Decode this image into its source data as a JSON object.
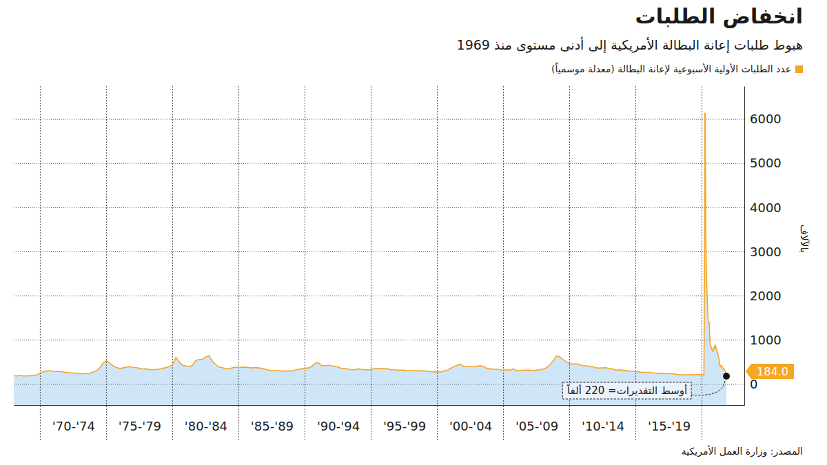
{
  "chart_data": {
    "type": "area",
    "title": "انخفاض الطلبات",
    "subtitle": "هبوط طلبات إعانة البطالة الأمريكية إلى أدنى مستوى منذ 1969",
    "y_label": "بالآلاف",
    "source": "المصدر: وزارة العمل الأمريكية",
    "x": [
      1968,
      1968.25,
      1968.5,
      1968.75,
      1969,
      1969.25,
      1969.5,
      1969.75,
      1970,
      1970.25,
      1970.5,
      1970.75,
      1971,
      1971.25,
      1971.5,
      1971.75,
      1972,
      1972.25,
      1972.5,
      1972.75,
      1973,
      1973.25,
      1973.5,
      1973.75,
      1974,
      1974.25,
      1974.5,
      1974.75,
      1975,
      1975.25,
      1975.5,
      1975.75,
      1976,
      1976.25,
      1976.5,
      1976.75,
      1977,
      1977.25,
      1977.5,
      1977.75,
      1978,
      1978.25,
      1978.5,
      1978.75,
      1979,
      1979.25,
      1979.5,
      1979.75,
      1980,
      1980.25,
      1980.5,
      1980.75,
      1981,
      1981.25,
      1981.5,
      1981.75,
      1982,
      1982.25,
      1982.5,
      1982.75,
      1983,
      1983.25,
      1983.5,
      1983.75,
      1984,
      1984.25,
      1984.5,
      1984.75,
      1985,
      1985.25,
      1985.5,
      1985.75,
      1986,
      1986.25,
      1986.5,
      1986.75,
      1987,
      1987.25,
      1987.5,
      1987.75,
      1988,
      1988.25,
      1988.5,
      1988.75,
      1989,
      1989.25,
      1989.5,
      1989.75,
      1990,
      1990.25,
      1990.5,
      1990.75,
      1991,
      1991.25,
      1991.5,
      1991.75,
      1992,
      1992.25,
      1992.5,
      1992.75,
      1993,
      1993.25,
      1993.5,
      1993.75,
      1994,
      1994.25,
      1994.5,
      1994.75,
      1995,
      1995.25,
      1995.5,
      1995.75,
      1996,
      1996.25,
      1996.5,
      1996.75,
      1997,
      1997.25,
      1997.5,
      1997.75,
      1998,
      1998.25,
      1998.5,
      1998.75,
      1999,
      1999.25,
      1999.5,
      1999.75,
      2000,
      2000.25,
      2000.5,
      2000.75,
      2001,
      2001.25,
      2001.5,
      2001.75,
      2002,
      2002.25,
      2002.5,
      2002.75,
      2003,
      2003.25,
      2003.5,
      2003.75,
      2004,
      2004.25,
      2004.5,
      2004.75,
      2005,
      2005.25,
      2005.5,
      2005.75,
      2006,
      2006.25,
      2006.5,
      2006.75,
      2007,
      2007.25,
      2007.5,
      2007.75,
      2008,
      2008.25,
      2008.5,
      2008.75,
      2009,
      2009.25,
      2009.5,
      2009.75,
      2010,
      2010.25,
      2010.5,
      2010.75,
      2011,
      2011.25,
      2011.5,
      2011.75,
      2012,
      2012.25,
      2012.5,
      2012.75,
      2013,
      2013.25,
      2013.5,
      2013.75,
      2014,
      2014.25,
      2014.5,
      2014.75,
      2015,
      2015.25,
      2015.5,
      2015.75,
      2016,
      2016.25,
      2016.5,
      2016.75,
      2017,
      2017.25,
      2017.5,
      2017.75,
      2018,
      2018.25,
      2018.5,
      2018.75,
      2019,
      2019.25,
      2019.5,
      2019.75,
      2020,
      2020.15,
      2020.2,
      2020.22,
      2020.24,
      2020.26,
      2020.28,
      2020.3,
      2020.35,
      2020.4,
      2020.45,
      2020.5,
      2020.55,
      2020.6,
      2020.65,
      2020.7,
      2020.75,
      2020.8,
      2020.85,
      2020.9,
      2020.95,
      2021,
      2021.05,
      2021.1,
      2021.15,
      2021.2,
      2021.25,
      2021.3,
      2021.35,
      2021.4,
      2021.45,
      2021.5,
      2021.55,
      2021.6,
      2021.65,
      2021.7,
      2021.75,
      2021.8,
      2021.85
    ],
    "series": [
      {
        "name": "عدد الطلبات الأولية الأسبوعية لإعانة البطالة (معدلة موسمياً)",
        "color": "#f5a623",
        "values": [
          195,
          190,
          200,
          190,
          190,
          195,
          200,
          215,
          260,
          290,
          300,
          310,
          290,
          295,
          290,
          280,
          265,
          260,
          255,
          250,
          235,
          240,
          245,
          250,
          280,
          300,
          380,
          480,
          540,
          480,
          420,
          380,
          360,
          370,
          390,
          400,
          380,
          375,
          365,
          345,
          350,
          335,
          330,
          335,
          345,
          360,
          380,
          400,
          440,
          610,
          510,
          430,
          420,
          400,
          430,
          540,
          560,
          570,
          620,
          650,
          520,
          450,
          390,
          380,
          350,
          350,
          370,
          390,
          380,
          390,
          385,
          380,
          370,
          380,
          370,
          360,
          340,
          320,
          310,
          310,
          310,
          300,
          300,
          305,
          300,
          320,
          340,
          350,
          360,
          370,
          400,
          470,
          490,
          430,
          420,
          430,
          420,
          410,
          390,
          360,
          360,
          350,
          330,
          330,
          350,
          340,
          330,
          330,
          330,
          360,
          360,
          355,
          350,
          350,
          330,
          330,
          320,
          320,
          320,
          310,
          310,
          310,
          310,
          310,
          300,
          300,
          290,
          280,
          280,
          280,
          300,
          320,
          360,
          400,
          430,
          460,
          400,
          410,
          400,
          400,
          410,
          420,
          400,
          360,
          350,
          340,
          340,
          330,
          320,
          330,
          320,
          350,
          310,
          310,
          320,
          320,
          320,
          310,
          320,
          330,
          350,
          370,
          440,
          530,
          640,
          620,
          560,
          510,
          470,
          460,
          460,
          450,
          420,
          420,
          410,
          400,
          370,
          370,
          370,
          380,
          350,
          350,
          320,
          330,
          320,
          310,
          300,
          290,
          290,
          280,
          270,
          270,
          270,
          260,
          255,
          250,
          245,
          240,
          240,
          240,
          230,
          220,
          215,
          215,
          215,
          220,
          215,
          220,
          215,
          210,
          2920,
          6150,
          6100,
          5000,
          4300,
          3100,
          2400,
          1900,
          1500,
          1400,
          1400,
          1000,
          870,
          850,
          790,
          750,
          750,
          850,
          800,
          900,
          850,
          780,
          750,
          700,
          620,
          550,
          450,
          400,
          410,
          420,
          380,
          350,
          350,
          330,
          290,
          270,
          184
        ]
      }
    ],
    "xlim": [
      1968,
      2023.2
    ],
    "xticks": [
      {
        "value": 1972.5,
        "label": "'70-'74"
      },
      {
        "value": 1977.5,
        "label": "'75-'79"
      },
      {
        "value": 1982.5,
        "label": "'80-'84"
      },
      {
        "value": 1987.5,
        "label": "'85-'89"
      },
      {
        "value": 1992.5,
        "label": "'90-'94"
      },
      {
        "value": 1997.5,
        "label": "'95-'99"
      },
      {
        "value": 2002.5,
        "label": "'00-'04"
      },
      {
        "value": 2007.5,
        "label": "'05-'09"
      },
      {
        "value": 2012.5,
        "label": "'10-'14"
      },
      {
        "value": 2017.5,
        "label": "'15-'19"
      }
    ],
    "ylim": [
      -470,
      6750
    ],
    "yticks": [
      0,
      1000,
      2000,
      3000,
      4000,
      5000,
      6000
    ],
    "grid": true,
    "annotations": [
      {
        "x": 2021.85,
        "y": 184,
        "text": "184.0"
      },
      {
        "text": "أوسط التقديرات= 220 ألفاً"
      }
    ]
  }
}
